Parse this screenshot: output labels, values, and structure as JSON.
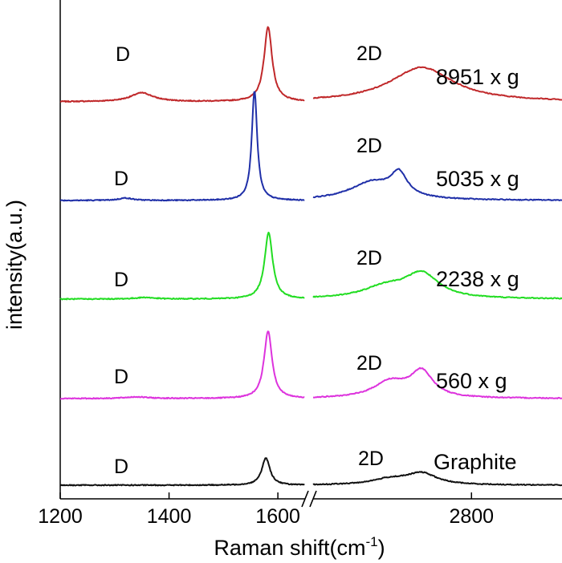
{
  "chart_data": {
    "type": "line",
    "title": "",
    "xlabel": "Raman shift(cm",
    "xlabel_sup": "-1",
    "xlabel_suffix": ")",
    "ylabel": "intensity(a.u.)",
    "x_axis": {
      "broken": true,
      "segments": [
        {
          "range": [
            1200,
            1650
          ],
          "ticks": [
            1200,
            1400,
            1600
          ]
        },
        {
          "range": [
            2450,
            3000
          ],
          "ticks": [
            2800
          ]
        }
      ]
    },
    "y_ticks_shown": false,
    "grid": false,
    "legend": "none",
    "series": [
      {
        "name": "8951 x g",
        "color": "#c0282a",
        "d_label": "D",
        "g2d_label": "2D",
        "peaks": [
          {
            "x": 1350,
            "height": 0.11,
            "width": 25
          },
          {
            "x": 1582,
            "height": 0.93,
            "width": 9
          },
          {
            "x": 2690,
            "height": 0.43,
            "width": 85
          }
        ]
      },
      {
        "name": "5035 x g",
        "color": "#1f2fa8",
        "d_label": "D",
        "g2d_label": "2D",
        "peaks": [
          {
            "x": 1320,
            "height": 0.03,
            "width": 15
          },
          {
            "x": 1557,
            "height": 1.37,
            "width": 6
          },
          {
            "x": 2640,
            "height": 0.28,
            "width": 22
          },
          {
            "x": 2580,
            "height": 0.22,
            "width": 60
          }
        ]
      },
      {
        "name": "2238 x g",
        "color": "#22dd22",
        "d_label": "D",
        "g2d_label": "2D",
        "peaks": [
          {
            "x": 1355,
            "height": 0.02,
            "width": 20
          },
          {
            "x": 1583,
            "height": 0.83,
            "width": 9
          },
          {
            "x": 2690,
            "height": 0.3,
            "width": 45
          },
          {
            "x": 2610,
            "height": 0.14,
            "width": 60
          }
        ]
      },
      {
        "name": "560 x g",
        "color": "#dd33dd",
        "d_label": "D",
        "g2d_label": "2D",
        "peaks": [
          {
            "x": 1340,
            "height": 0.02,
            "width": 25
          },
          {
            "x": 1582,
            "height": 0.84,
            "width": 9
          },
          {
            "x": 2690,
            "height": 0.32,
            "width": 30
          },
          {
            "x": 2620,
            "height": 0.2,
            "width": 45
          }
        ]
      },
      {
        "name": "Graphite",
        "color": "#111111",
        "d_label": "D",
        "g2d_label": "2D",
        "peaks": [
          {
            "x": 1578,
            "height": 0.34,
            "width": 9
          },
          {
            "x": 2690,
            "height": 0.14,
            "width": 40
          },
          {
            "x": 2620,
            "height": 0.07,
            "width": 50
          }
        ]
      }
    ]
  }
}
